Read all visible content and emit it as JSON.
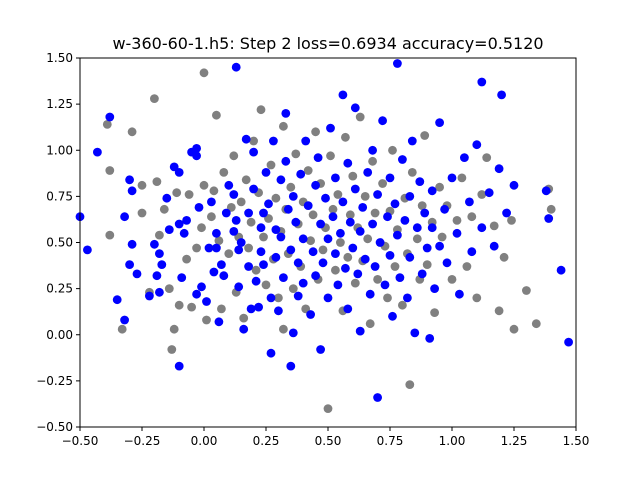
{
  "chart_data": {
    "type": "scatter",
    "title": "w-360-60-1.h5: Step 2 loss=0.6934 accuracy=0.5120",
    "xlabel": "",
    "ylabel": "",
    "xlim": [
      -0.5,
      1.5
    ],
    "ylim": [
      -0.5,
      1.5
    ],
    "xticks": [
      -0.5,
      -0.25,
      0.0,
      0.25,
      0.5,
      0.75,
      1.0,
      1.25,
      1.5
    ],
    "yticks": [
      -0.5,
      -0.25,
      0.0,
      0.25,
      0.5,
      0.75,
      1.0,
      1.25,
      1.5
    ],
    "xtick_labels": [
      "−0.50",
      "−0.25",
      "0.00",
      "0.25",
      "0.50",
      "0.75",
      "1.00",
      "1.25",
      "1.50"
    ],
    "ytick_labels": [
      "−0.50",
      "−0.25",
      "0.00",
      "0.25",
      "0.50",
      "0.75",
      "1.00",
      "1.25",
      "1.50"
    ],
    "grid": false,
    "legend": "none",
    "series": [
      {
        "color": "#0000ff",
        "points": [
          [
            -0.5,
            0.64
          ],
          [
            -0.47,
            0.46
          ],
          [
            -0.43,
            0.99
          ],
          [
            -0.38,
            1.18
          ],
          [
            -0.32,
            0.64
          ],
          [
            -0.35,
            0.19
          ],
          [
            -0.32,
            0.08
          ],
          [
            -0.29,
            0.78
          ],
          [
            -0.3,
            0.84
          ],
          [
            -0.29,
            0.49
          ],
          [
            -0.3,
            0.38
          ],
          [
            -0.27,
            0.33
          ],
          [
            -0.22,
            0.21
          ],
          [
            -0.2,
            0.49
          ],
          [
            -0.18,
            0.44
          ],
          [
            -0.18,
            0.23
          ],
          [
            -0.17,
            0.38
          ],
          [
            -0.19,
            0.32
          ],
          [
            -0.15,
            0.74
          ],
          [
            -0.14,
            0.57
          ],
          [
            -0.12,
            0.91
          ],
          [
            -0.1,
            0.88
          ],
          [
            -0.1,
            0.6
          ],
          [
            -0.09,
            0.31
          ],
          [
            -0.1,
            -0.17
          ],
          [
            -0.08,
            0.55
          ],
          [
            -0.07,
            0.62
          ],
          [
            -0.05,
            0.99
          ],
          [
            -0.03,
            0.97
          ],
          [
            -0.03,
            1.01
          ],
          [
            -0.02,
            0.69
          ],
          [
            -0.01,
            0.26
          ],
          [
            -0.03,
            0.22
          ],
          [
            0.01,
            0.18
          ],
          [
            0.02,
            0.47
          ],
          [
            0.03,
            0.72
          ],
          [
            0.04,
            0.34
          ],
          [
            0.05,
            0.47
          ],
          [
            0.05,
            0.55
          ],
          [
            0.06,
            0.07
          ],
          [
            0.07,
            0.38
          ],
          [
            0.08,
            0.32
          ],
          [
            0.09,
            0.66
          ],
          [
            0.1,
            0.81
          ],
          [
            0.12,
            0.76
          ],
          [
            0.12,
            0.56
          ],
          [
            0.13,
            0.62
          ],
          [
            0.13,
            1.45
          ],
          [
            0.14,
            0.46
          ],
          [
            0.14,
            0.26
          ],
          [
            0.15,
            0.5
          ],
          [
            0.16,
            0.03
          ],
          [
            0.17,
            1.06
          ],
          [
            0.18,
            0.66
          ],
          [
            0.18,
            0.37
          ],
          [
            0.19,
            0.14
          ],
          [
            0.2,
            0.99
          ],
          [
            0.2,
            0.79
          ],
          [
            0.21,
            0.29
          ],
          [
            0.22,
            0.15
          ],
          [
            0.23,
            0.58
          ],
          [
            0.23,
            0.45
          ],
          [
            0.24,
            0.38
          ],
          [
            0.24,
            0.66
          ],
          [
            0.25,
            0.88
          ],
          [
            0.26,
            0.71
          ],
          [
            0.27,
            0.2
          ],
          [
            0.27,
            -0.1
          ],
          [
            0.28,
            1.05
          ],
          [
            0.29,
            0.57
          ],
          [
            0.29,
            0.42
          ],
          [
            0.3,
            0.13
          ],
          [
            0.31,
            0.84
          ],
          [
            0.31,
            0.53
          ],
          [
            0.32,
            0.31
          ],
          [
            0.33,
            1.2
          ],
          [
            0.33,
            0.94
          ],
          [
            0.34,
            0.68
          ],
          [
            0.35,
            0.46
          ],
          [
            0.35,
            -0.17
          ],
          [
            0.36,
            0.75
          ],
          [
            0.36,
            0.01
          ],
          [
            0.37,
            0.61
          ],
          [
            0.38,
            0.39
          ],
          [
            0.38,
            0.21
          ],
          [
            0.39,
            0.87
          ],
          [
            0.4,
            0.52
          ],
          [
            0.4,
            0.28
          ],
          [
            0.41,
            1.05
          ],
          [
            0.42,
            0.7
          ],
          [
            0.43,
            0.11
          ],
          [
            0.44,
            0.45
          ],
          [
            0.45,
            0.81
          ],
          [
            0.45,
            0.32
          ],
          [
            0.46,
            0.96
          ],
          [
            0.47,
            0.6
          ],
          [
            0.47,
            -0.08
          ],
          [
            0.48,
            0.39
          ],
          [
            0.49,
            0.74
          ],
          [
            0.5,
            0.52
          ],
          [
            0.5,
            0.2
          ],
          [
            0.51,
            1.12
          ],
          [
            0.52,
            0.64
          ],
          [
            0.53,
            0.44
          ],
          [
            0.53,
            0.85
          ],
          [
            0.54,
            0.27
          ],
          [
            0.55,
            0.55
          ],
          [
            0.56,
            0.72
          ],
          [
            0.56,
            1.3
          ],
          [
            0.57,
            0.36
          ],
          [
            0.58,
            0.93
          ],
          [
            0.58,
            0.14
          ],
          [
            0.59,
            0.61
          ],
          [
            0.6,
            0.47
          ],
          [
            0.61,
            0.79
          ],
          [
            0.61,
            1.23
          ],
          [
            0.62,
            0.33
          ],
          [
            0.63,
            0.56
          ],
          [
            0.63,
            0.02
          ],
          [
            0.64,
            0.69
          ],
          [
            0.65,
            0.41
          ],
          [
            0.66,
            0.88
          ],
          [
            0.67,
            0.22
          ],
          [
            0.68,
            0.6
          ],
          [
            0.68,
            1.0
          ],
          [
            0.69,
            0.37
          ],
          [
            0.7,
            0.76
          ],
          [
            0.7,
            -0.34
          ],
          [
            0.71,
            0.5
          ],
          [
            0.72,
            1.16
          ],
          [
            0.73,
            0.27
          ],
          [
            0.74,
            0.64
          ],
          [
            0.75,
            0.85
          ],
          [
            0.75,
            0.43
          ],
          [
            0.76,
            0.1
          ],
          [
            0.77,
            0.71
          ],
          [
            0.78,
            0.54
          ],
          [
            0.78,
            1.47
          ],
          [
            0.79,
            0.31
          ],
          [
            0.8,
            0.95
          ],
          [
            0.81,
            0.62
          ],
          [
            0.82,
            0.2
          ],
          [
            0.83,
            0.75
          ],
          [
            0.83,
            0.42
          ],
          [
            0.84,
            1.05
          ],
          [
            0.85,
            0.01
          ],
          [
            0.86,
            0.58
          ],
          [
            0.87,
            0.83
          ],
          [
            0.88,
            0.33
          ],
          [
            0.89,
            0.66
          ],
          [
            0.9,
            0.47
          ],
          [
            0.91,
            -0.02
          ],
          [
            0.92,
            0.78
          ],
          [
            0.92,
            0.58
          ],
          [
            0.93,
            0.25
          ],
          [
            0.95,
            0.48
          ],
          [
            0.95,
            1.15
          ],
          [
            0.97,
            0.68
          ],
          [
            0.98,
            0.39
          ],
          [
            1.0,
            0.85
          ],
          [
            1.02,
            0.55
          ],
          [
            1.03,
            0.22
          ],
          [
            1.05,
            0.96
          ],
          [
            1.07,
            0.72
          ],
          [
            1.08,
            0.45
          ],
          [
            1.1,
            1.03
          ],
          [
            1.12,
            0.58
          ],
          [
            1.12,
            1.37
          ],
          [
            1.15,
            0.77
          ],
          [
            1.17,
            0.48
          ],
          [
            1.19,
            0.9
          ],
          [
            1.2,
            1.3
          ],
          [
            1.22,
            0.66
          ],
          [
            1.25,
            0.81
          ],
          [
            1.38,
            0.78
          ],
          [
            1.39,
            0.63
          ],
          [
            1.44,
            0.35
          ],
          [
            1.47,
            -0.04
          ]
        ]
      },
      {
        "color": "#808080",
        "points": [
          [
            -0.39,
            1.14
          ],
          [
            -0.38,
            0.89
          ],
          [
            -0.38,
            0.54
          ],
          [
            -0.33,
            0.03
          ],
          [
            -0.29,
            1.1
          ],
          [
            -0.25,
            0.66
          ],
          [
            -0.25,
            0.81
          ],
          [
            -0.22,
            0.23
          ],
          [
            -0.2,
            1.28
          ],
          [
            -0.19,
            0.83
          ],
          [
            -0.18,
            0.54
          ],
          [
            -0.16,
            0.68
          ],
          [
            -0.14,
            0.25
          ],
          [
            -0.12,
            0.03
          ],
          [
            -0.13,
            -0.08
          ],
          [
            -0.11,
            0.77
          ],
          [
            -0.1,
            0.16
          ],
          [
            -0.07,
            0.41
          ],
          [
            -0.06,
            0.76
          ],
          [
            -0.05,
            0.15
          ],
          [
            -0.03,
            0.47
          ],
          [
            -0.01,
            0.58
          ],
          [
            0.0,
            1.42
          ],
          [
            0.0,
            0.81
          ],
          [
            0.01,
            0.08
          ],
          [
            0.03,
            0.64
          ],
          [
            0.04,
            0.78
          ],
          [
            0.05,
            1.19
          ],
          [
            0.06,
            0.51
          ],
          [
            0.07,
            0.14
          ],
          [
            0.08,
            0.88
          ],
          [
            0.1,
            0.44
          ],
          [
            0.11,
            0.69
          ],
          [
            0.12,
            0.97
          ],
          [
            0.13,
            0.23
          ],
          [
            0.14,
            0.53
          ],
          [
            0.15,
            0.72
          ],
          [
            0.16,
            0.09
          ],
          [
            0.17,
            0.84
          ],
          [
            0.18,
            0.47
          ],
          [
            0.19,
            0.61
          ],
          [
            0.2,
            1.05
          ],
          [
            0.21,
            0.35
          ],
          [
            0.22,
            0.77
          ],
          [
            0.23,
            1.22
          ],
          [
            0.24,
            0.53
          ],
          [
            0.25,
            0.27
          ],
          [
            0.26,
            0.63
          ],
          [
            0.27,
            0.92
          ],
          [
            0.28,
            0.41
          ],
          [
            0.29,
            0.74
          ],
          [
            0.3,
            0.2
          ],
          [
            0.31,
            0.56
          ],
          [
            0.32,
            0.03
          ],
          [
            0.32,
            1.13
          ],
          [
            0.33,
            0.68
          ],
          [
            0.34,
            0.44
          ],
          [
            0.35,
            0.8
          ],
          [
            0.36,
            0.25
          ],
          [
            0.37,
            0.98
          ],
          [
            0.38,
            0.6
          ],
          [
            0.39,
            0.37
          ],
          [
            0.4,
            0.72
          ],
          [
            0.41,
            0.14
          ],
          [
            0.42,
            0.89
          ],
          [
            0.43,
            0.51
          ],
          [
            0.44,
            0.65
          ],
          [
            0.45,
            1.1
          ],
          [
            0.46,
            0.3
          ],
          [
            0.47,
            0.82
          ],
          [
            0.48,
            0.46
          ],
          [
            0.49,
            0.58
          ],
          [
            0.5,
            -0.4
          ],
          [
            0.51,
            0.97
          ],
          [
            0.52,
            0.68
          ],
          [
            0.53,
            0.35
          ],
          [
            0.54,
            0.76
          ],
          [
            0.55,
            0.5
          ],
          [
            0.56,
            0.13
          ],
          [
            0.57,
            1.07
          ],
          [
            0.58,
            0.42
          ],
          [
            0.59,
            0.65
          ],
          [
            0.6,
            0.86
          ],
          [
            0.61,
            0.28
          ],
          [
            0.62,
            0.58
          ],
          [
            0.63,
            1.18
          ],
          [
            0.64,
            0.4
          ],
          [
            0.65,
            0.75
          ],
          [
            0.66,
            0.52
          ],
          [
            0.67,
            0.06
          ],
          [
            0.68,
            0.94
          ],
          [
            0.69,
            0.66
          ],
          [
            0.7,
            0.3
          ],
          [
            0.72,
            0.82
          ],
          [
            0.73,
            0.48
          ],
          [
            0.74,
            0.2
          ],
          [
            0.75,
            0.67
          ],
          [
            0.76,
            1.0
          ],
          [
            0.77,
            0.37
          ],
          [
            0.78,
            0.57
          ],
          [
            0.8,
            0.16
          ],
          [
            0.81,
            0.74
          ],
          [
            0.82,
            0.44
          ],
          [
            0.83,
            -0.27
          ],
          [
            0.84,
            0.88
          ],
          [
            0.86,
            0.52
          ],
          [
            0.87,
            0.3
          ],
          [
            0.88,
            0.7
          ],
          [
            0.89,
            1.08
          ],
          [
            0.9,
            0.38
          ],
          [
            0.92,
            0.61
          ],
          [
            0.93,
            0.12
          ],
          [
            0.95,
            0.8
          ],
          [
            0.96,
            0.53
          ],
          [
            0.98,
            0.7
          ],
          [
            1.0,
            0.3
          ],
          [
            1.02,
            0.62
          ],
          [
            1.04,
            0.85
          ],
          [
            1.06,
            0.37
          ],
          [
            1.08,
            0.64
          ],
          [
            1.1,
            0.2
          ],
          [
            1.12,
            0.76
          ],
          [
            1.14,
            0.96
          ],
          [
            1.17,
            0.59
          ],
          [
            1.19,
            0.13
          ],
          [
            1.21,
            0.42
          ],
          [
            1.24,
            0.62
          ],
          [
            1.25,
            0.03
          ],
          [
            1.3,
            0.24
          ],
          [
            1.34,
            0.06
          ],
          [
            1.39,
            0.79
          ],
          [
            1.4,
            0.68
          ]
        ]
      }
    ]
  }
}
